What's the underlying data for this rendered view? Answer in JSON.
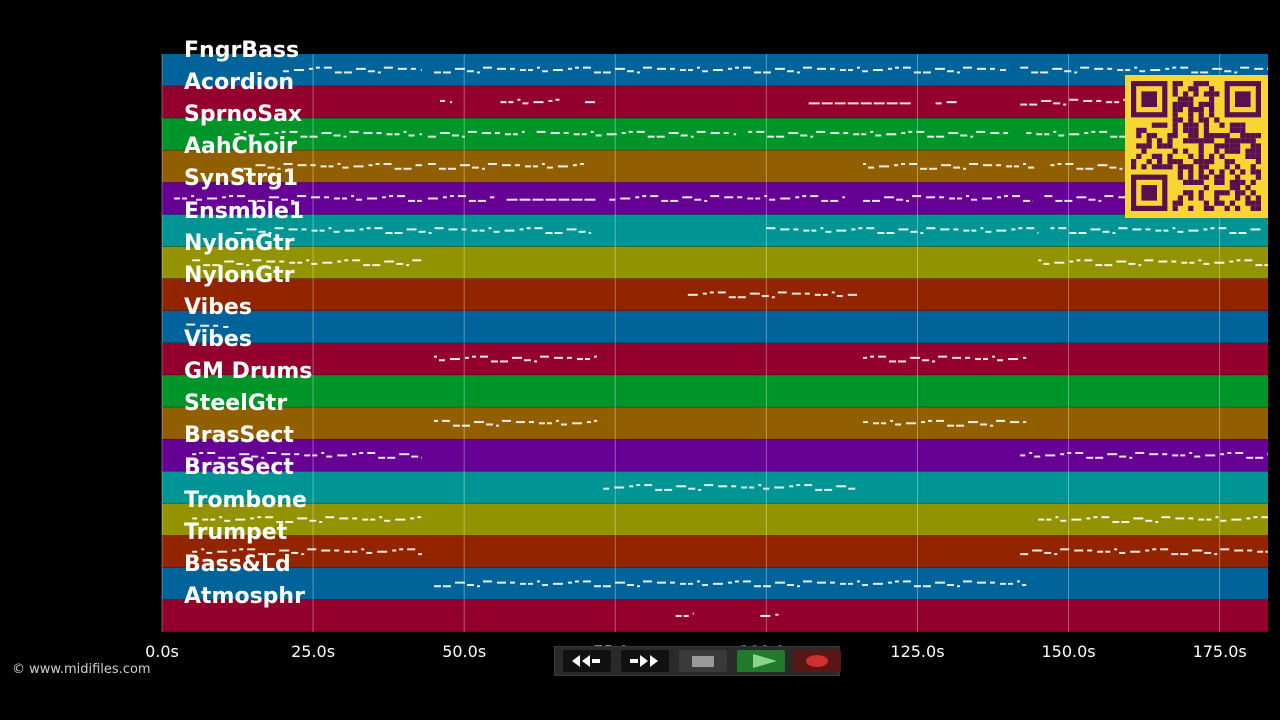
{
  "app": {
    "copyright": "© www.midifiles.com"
  },
  "timeline": {
    "start": 0,
    "end": 183,
    "ticks": [
      {
        "value": 0,
        "label": "0.0s"
      },
      {
        "value": 25,
        "label": "25.0s"
      },
      {
        "value": 50,
        "label": "50.0s"
      },
      {
        "value": 75,
        "label": "75.0s"
      },
      {
        "value": 100,
        "label": "100.0s"
      },
      {
        "value": 125,
        "label": "125.0s"
      },
      {
        "value": 150,
        "label": "150.0s"
      },
      {
        "value": 175,
        "label": "175.0s"
      }
    ]
  },
  "tracks": [
    {
      "label": "FngrBass",
      "color": "#00639a",
      "notes": [
        [
          20,
          43
        ],
        [
          45,
          140
        ],
        [
          142,
          183
        ]
      ]
    },
    {
      "label": "Acordion",
      "color": "#93002d",
      "notes": [
        [
          46,
          48
        ],
        [
          56,
          66
        ],
        [
          70,
          72
        ],
        [
          107,
          124
        ],
        [
          128,
          132
        ],
        [
          142,
          183
        ]
      ]
    },
    {
      "label": "SprnoSax",
      "color": "#009528",
      "notes": [
        [
          12,
          43
        ],
        [
          44,
          60
        ],
        [
          62,
          95
        ],
        [
          97,
          140
        ],
        [
          143,
          183
        ]
      ]
    },
    {
      "label": "AahChoir",
      "color": "#925f00",
      "notes": [
        [
          12,
          43
        ],
        [
          44,
          70
        ],
        [
          116,
          145
        ],
        [
          147,
          183
        ]
      ]
    },
    {
      "label": "SynStrg1",
      "color": "#660095",
      "notes": [
        [
          2,
          43
        ],
        [
          44,
          55
        ],
        [
          57,
          72
        ],
        [
          74,
          113
        ],
        [
          116,
          144
        ],
        [
          146,
          183
        ]
      ]
    },
    {
      "label": "Ensmble1",
      "color": "#009595",
      "notes": [
        [
          12,
          71
        ],
        [
          100,
          145
        ],
        [
          147,
          182
        ]
      ]
    },
    {
      "label": "NylonGtr",
      "color": "#939300",
      "notes": [
        [
          5,
          43
        ],
        [
          145,
          183
        ]
      ]
    },
    {
      "label": "NylonGtr",
      "color": "#932400",
      "notes": [
        [
          87,
          115
        ]
      ]
    },
    {
      "label": "Vibes",
      "color": "#00639a",
      "notes": [
        [
          4,
          11
        ]
      ]
    },
    {
      "label": "Vibes",
      "color": "#93002d",
      "notes": [
        [
          45,
          72
        ],
        [
          116,
          143
        ]
      ]
    },
    {
      "label": "GM Drums",
      "color": "#009528",
      "notes": []
    },
    {
      "label": "SteelGtr",
      "color": "#925f00",
      "notes": [
        [
          45,
          72
        ],
        [
          116,
          143
        ]
      ]
    },
    {
      "label": "BrasSect",
      "color": "#660095",
      "notes": [
        [
          5,
          43
        ],
        [
          142,
          183
        ]
      ]
    },
    {
      "label": "BrasSect",
      "color": "#009595",
      "notes": [
        [
          73,
          115
        ]
      ]
    },
    {
      "label": "Trombone",
      "color": "#939300",
      "notes": [
        [
          5,
          43
        ],
        [
          145,
          183
        ]
      ]
    },
    {
      "label": "Trumpet",
      "color": "#932400",
      "notes": [
        [
          5,
          43
        ],
        [
          142,
          183
        ]
      ]
    },
    {
      "label": "Bass&Ld",
      "color": "#00639a",
      "notes": [
        [
          45,
          143
        ]
      ]
    },
    {
      "label": "Atmosphr",
      "color": "#93002d",
      "notes": [
        [
          85,
          88
        ],
        [
          99,
          102
        ]
      ]
    }
  ],
  "controls": {
    "rewind": "rewind-icon",
    "fast_forward": "fast-forward-icon",
    "stop": "stop-icon",
    "play": "play-icon",
    "record": "record-icon",
    "colors": {
      "rewind_bg": "#111111",
      "ff_bg": "#111111",
      "stop_bg": "#3a3a3a",
      "play_bg": "#1f7a2a",
      "record_bg": "#5a1515",
      "record_dot": "#d03030",
      "play_arrow": "#8ad58a"
    }
  },
  "qr_code": {
    "foreground": "#5a0f4e",
    "background": "#f7d533"
  }
}
